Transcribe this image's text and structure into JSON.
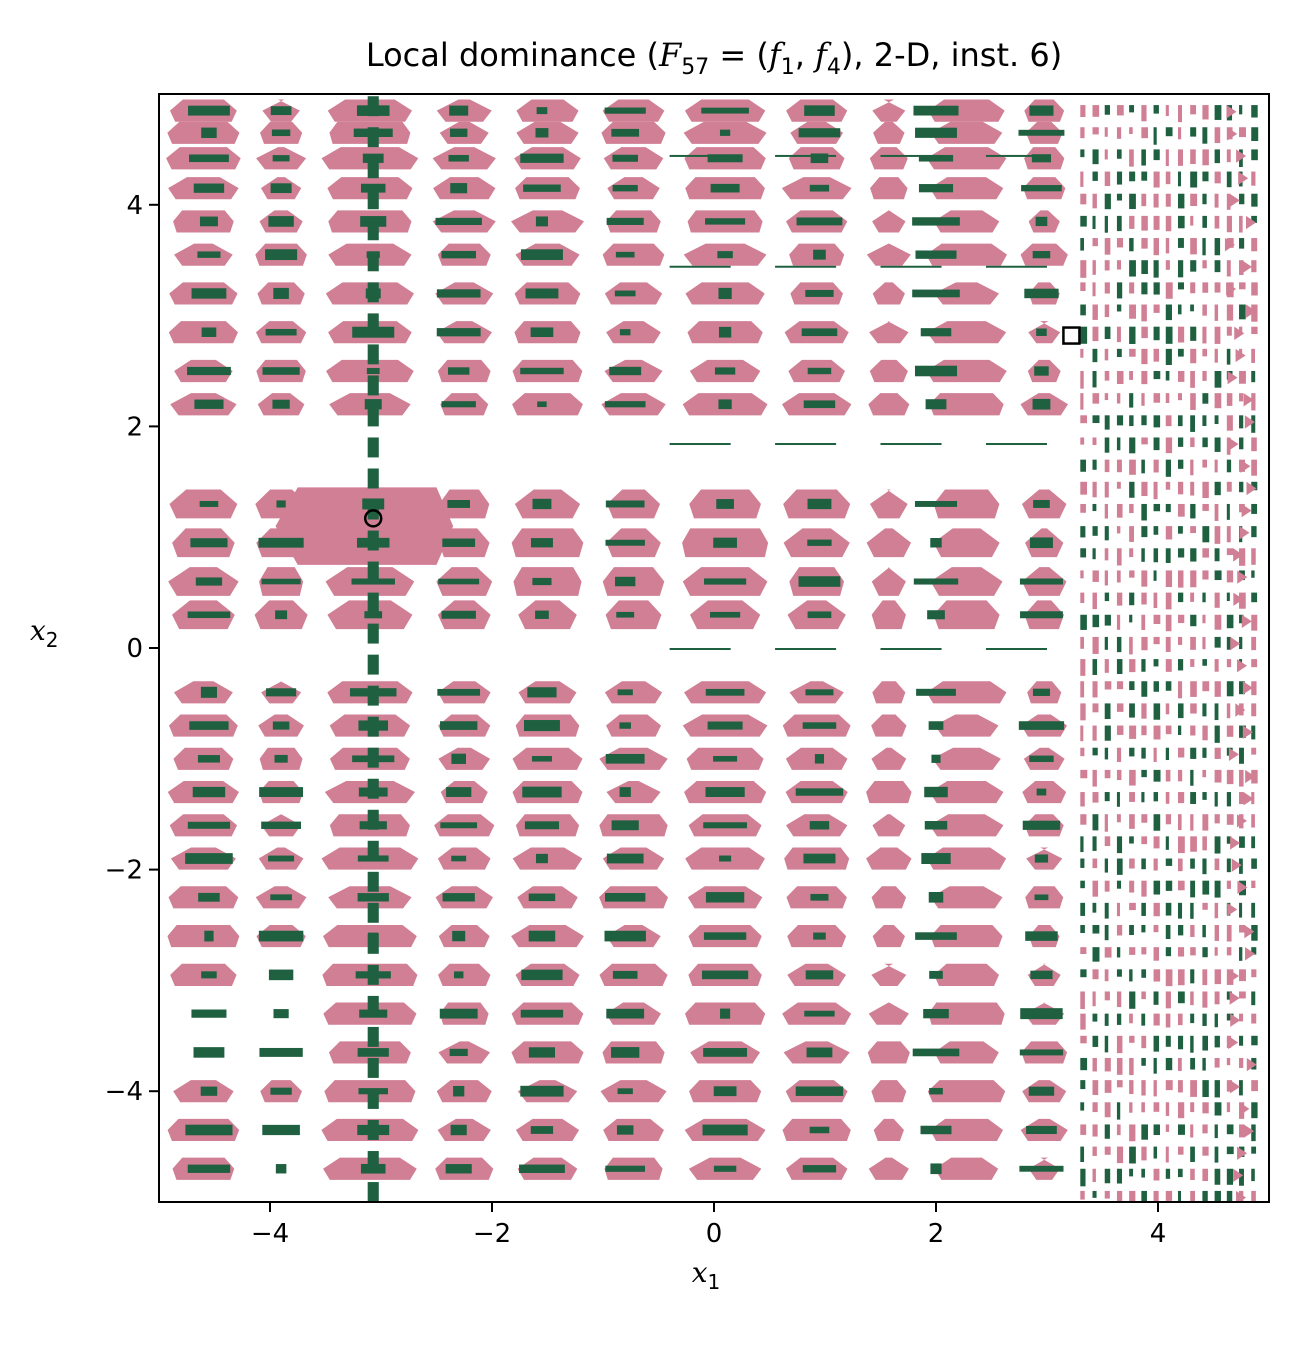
{
  "chart_data": {
    "type": "heatmap",
    "title": {
      "prefix": "Local dominance (",
      "F": "F",
      "F_sub": "57",
      "eq": " = (",
      "f1": "f",
      "f1_sub": "1",
      "comma": ", ",
      "f4": "f",
      "f4_sub": "4",
      "suffix": "), 2-D, inst. 6)"
    },
    "xlabel": {
      "var": "x",
      "sub": "1"
    },
    "ylabel": {
      "var": "x",
      "sub": "2"
    },
    "xlim": [
      -5,
      5
    ],
    "ylim": [
      -5,
      5
    ],
    "xticks": [
      -4,
      -2,
      0,
      2,
      4
    ],
    "yticks": [
      -4,
      -2,
      0,
      2,
      4
    ],
    "xtick_labels": [
      "−4",
      "−2",
      "0",
      "2",
      "4"
    ],
    "ytick_labels": [
      "−4",
      "−2",
      "0",
      "2",
      "4"
    ],
    "colors": {
      "region": "#d07f94",
      "optimum": "#1f6040",
      "background": "#ffffff",
      "frame": "#000000"
    },
    "grid": false,
    "markers": [
      {
        "shape": "circle",
        "x": -3.07,
        "y": 1.17
      },
      {
        "shape": "square",
        "x": 3.22,
        "y": 2.82
      }
    ],
    "region_bands_y": [
      4.85,
      4.65,
      4.42,
      4.15,
      3.85,
      3.55,
      3.2,
      2.85,
      2.5,
      2.2,
      1.3,
      0.95,
      0.6,
      0.3,
      -0.4,
      -0.7,
      -1.0,
      -1.3,
      -1.6,
      -1.9,
      -2.25,
      -2.6,
      -2.95,
      -3.3,
      -3.65,
      -4.0,
      -4.35,
      -4.7
    ],
    "optimum_columns_x": [
      -4.55,
      -3.9,
      -3.07,
      -2.3,
      -1.55,
      -0.8,
      0.1,
      0.95,
      2.0,
      2.95
    ]
  }
}
